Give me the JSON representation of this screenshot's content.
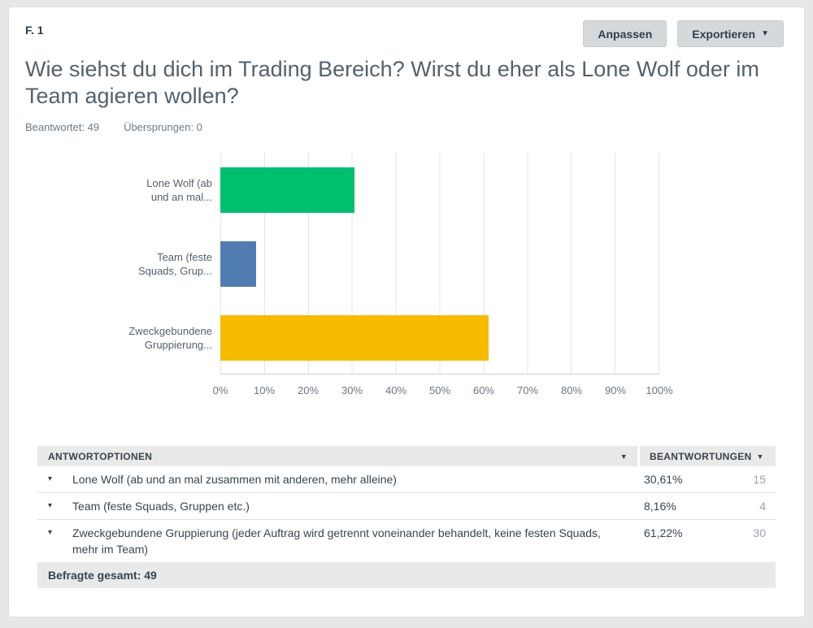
{
  "header": {
    "question_number": "F. 1",
    "customize_label": "Anpassen",
    "export_label": "Exportieren",
    "title": "Wie siehst du dich im Trading Bereich? Wirst du eher als Lone Wolf oder im Team agieren wollen?",
    "stats": {
      "answered": "Beantwortet: 49",
      "skipped": "Übersprungen: 0"
    }
  },
  "icons": {
    "dropdown_caret": "▼",
    "sort_caret": "▼",
    "row_caret": "▾"
  },
  "chart_data": {
    "type": "bar",
    "orientation": "horizontal",
    "title": "",
    "xlabel": "",
    "ylabel": "",
    "categories": [
      "Lone Wolf (ab und an mal zusammen mit anderen, mehr alleine)",
      "Team (feste Squads, Gruppen etc.)",
      "Zweckgebundene Gruppierung (jeder Auftrag wird getrennt voneinander behandelt, keine festen Squads, mehr im Team)"
    ],
    "category_display_lines": [
      [
        "Lone Wolf (ab",
        "und an mal..."
      ],
      [
        "Team (feste",
        "Squads, Grup..."
      ],
      [
        "Zweckgebundene",
        "Gruppierung..."
      ]
    ],
    "values": [
      30.61,
      8.16,
      61.22
    ],
    "colors": [
      "#00BF6F",
      "#507CB2",
      "#F7BB00"
    ],
    "xlim": [
      0,
      100
    ],
    "x_ticks": [
      "0%",
      "10%",
      "20%",
      "30%",
      "40%",
      "50%",
      "60%",
      "70%",
      "80%",
      "90%",
      "100%"
    ],
    "grid": "vertical",
    "legend": "none"
  },
  "table": {
    "header_options": "ANTWORTOPTIONEN",
    "header_responses": "BEANTWORTUNGEN",
    "rows": [
      {
        "label": "Lone Wolf (ab und an mal zusammen mit anderen, mehr alleine)",
        "percent": "30,61%",
        "count": "15"
      },
      {
        "label": "Team (feste Squads, Gruppen etc.)",
        "percent": "8,16%",
        "count": "4"
      },
      {
        "label": "Zweckgebundene Gruppierung (jeder Auftrag wird getrennt voneinander behandelt, keine festen Squads, mehr im Team)",
        "percent": "61,22%",
        "count": "30"
      }
    ],
    "footer": "Befragte gesamt: 49"
  }
}
